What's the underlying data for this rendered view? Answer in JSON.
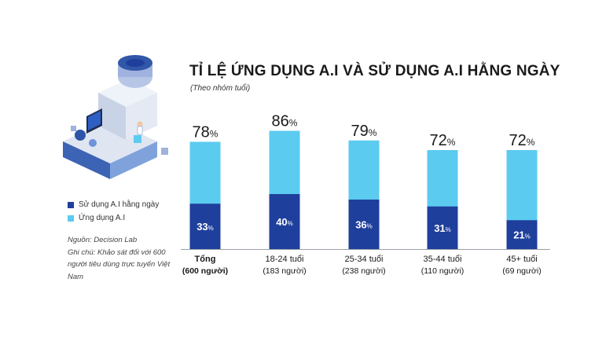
{
  "header": {
    "title": "TỈ LỆ ỨNG DỤNG A.I VÀ SỬ DỤNG A.I HẰNG NGÀY",
    "subtitle": "(Theo nhóm tuổi)"
  },
  "legend": {
    "items": [
      {
        "label": "Sử dụng A.I hằng ngày",
        "color": "#1f3f9c"
      },
      {
        "label": "Ứng dụng A.I",
        "color": "#5ccbf0"
      }
    ]
  },
  "notes": {
    "source": "Nguồn: Decision Lab",
    "note": "Ghi chú: Khảo sát đối với 600 người tiêu dùng trực tuyến Việt Nam"
  },
  "chart_data": {
    "type": "bar",
    "categories": [
      {
        "name": "Tổng",
        "sub": "(600 người)",
        "bold": true
      },
      {
        "name": "18-24 tuổi",
        "sub": "(183 người)",
        "bold": false
      },
      {
        "name": "25-34 tuổi",
        "sub": "(238 người)",
        "bold": false
      },
      {
        "name": "35-44 tuổi",
        "sub": "(110 người)",
        "bold": false
      },
      {
        "name": "45+ tuổi",
        "sub": "(69 người)",
        "bold": false
      }
    ],
    "series": [
      {
        "name": "Ứng dụng A.I",
        "values": [
          78,
          86,
          79,
          72,
          72
        ],
        "color": "#5ccbf0"
      },
      {
        "name": "Sử dụng A.I hằng ngày",
        "values": [
          33,
          40,
          36,
          31,
          21
        ],
        "color": "#1f3f9c"
      }
    ],
    "unit": "%",
    "ylim": [
      0,
      100
    ],
    "grid": false
  }
}
